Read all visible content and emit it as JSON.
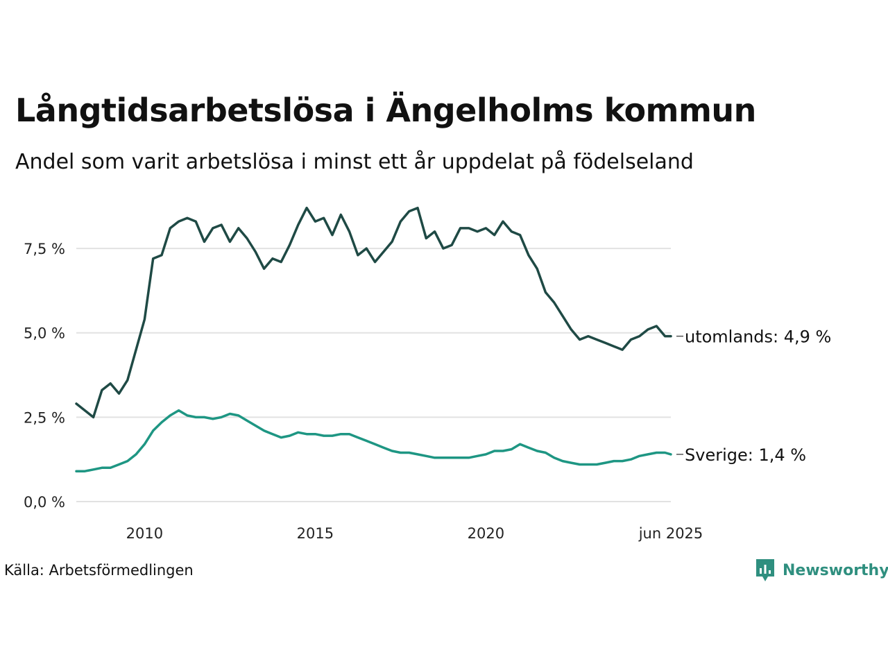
{
  "header": {
    "title": "Långtidsarbetslösa i Ängelholms kommun",
    "subtitle": "Andel som varit arbetslösa i minst ett år uppdelat på födelseland"
  },
  "footer": {
    "source": "Källa: Arbetsförmedlingen",
    "logo_text": "Newsworthy"
  },
  "chart_data": {
    "type": "line",
    "title": "Långtidsarbetslösa i Ängelholms kommun",
    "subtitle": "Andel som varit arbetslösa i minst ett år uppdelat på födelseland",
    "xlim": [
      2008.0,
      2025.42
    ],
    "ylim": [
      0,
      8.9
    ],
    "x_ticks": [
      {
        "value": 2010,
        "label": "2010"
      },
      {
        "value": 2015,
        "label": "2015"
      },
      {
        "value": 2020,
        "label": "2020"
      },
      {
        "value": 2025.42,
        "label": "jun 2025"
      }
    ],
    "y_ticks": [
      {
        "value": 0,
        "label": "0,0 %"
      },
      {
        "value": 2.5,
        "label": "2,5 %"
      },
      {
        "value": 5.0,
        "label": "5,0 %"
      },
      {
        "value": 7.5,
        "label": "7,5 %"
      }
    ],
    "grid": true,
    "series": [
      {
        "name": "utomlands",
        "end_label": "utomlands: 4,9 %",
        "color": "#1f4a45",
        "x": [
          2008.0,
          2008.25,
          2008.5,
          2008.75,
          2009.0,
          2009.25,
          2009.5,
          2009.75,
          2010.0,
          2010.25,
          2010.5,
          2010.75,
          2011.0,
          2011.25,
          2011.5,
          2011.75,
          2012.0,
          2012.25,
          2012.5,
          2012.75,
          2013.0,
          2013.25,
          2013.5,
          2013.75,
          2014.0,
          2014.25,
          2014.5,
          2014.75,
          2015.0,
          2015.25,
          2015.5,
          2015.75,
          2016.0,
          2016.25,
          2016.5,
          2016.75,
          2017.0,
          2017.25,
          2017.5,
          2017.75,
          2018.0,
          2018.25,
          2018.5,
          2018.75,
          2019.0,
          2019.25,
          2019.5,
          2019.75,
          2020.0,
          2020.25,
          2020.5,
          2020.75,
          2021.0,
          2021.25,
          2021.5,
          2021.75,
          2022.0,
          2022.25,
          2022.5,
          2022.75,
          2023.0,
          2023.25,
          2023.5,
          2023.75,
          2024.0,
          2024.25,
          2024.5,
          2024.75,
          2025.0,
          2025.25,
          2025.42
        ],
        "values": [
          2.9,
          2.7,
          2.5,
          3.3,
          3.5,
          3.2,
          3.6,
          4.5,
          5.4,
          7.2,
          7.3,
          8.1,
          8.3,
          8.4,
          8.3,
          7.7,
          8.1,
          8.2,
          7.7,
          8.1,
          7.8,
          7.4,
          6.9,
          7.2,
          7.1,
          7.6,
          8.2,
          8.7,
          8.3,
          8.4,
          7.9,
          8.5,
          8.0,
          7.3,
          7.5,
          7.1,
          7.4,
          7.7,
          8.3,
          8.6,
          8.7,
          7.8,
          8.0,
          7.5,
          7.6,
          8.1,
          8.1,
          8.0,
          8.1,
          7.9,
          8.3,
          8.0,
          7.9,
          7.3,
          6.9,
          6.2,
          5.9,
          5.5,
          5.1,
          4.8,
          4.9,
          4.8,
          4.7,
          4.6,
          4.5,
          4.8,
          4.9,
          5.1,
          5.2,
          4.9,
          4.9
        ]
      },
      {
        "name": "Sverige",
        "end_label": "Sverige: 1,4 %",
        "color": "#1e9683",
        "x": [
          2008.0,
          2008.25,
          2008.5,
          2008.75,
          2009.0,
          2009.25,
          2009.5,
          2009.75,
          2010.0,
          2010.25,
          2010.5,
          2010.75,
          2011.0,
          2011.25,
          2011.5,
          2011.75,
          2012.0,
          2012.25,
          2012.5,
          2012.75,
          2013.0,
          2013.25,
          2013.5,
          2013.75,
          2014.0,
          2014.25,
          2014.5,
          2014.75,
          2015.0,
          2015.25,
          2015.5,
          2015.75,
          2016.0,
          2016.25,
          2016.5,
          2016.75,
          2017.0,
          2017.25,
          2017.5,
          2017.75,
          2018.0,
          2018.25,
          2018.5,
          2018.75,
          2019.0,
          2019.25,
          2019.5,
          2019.75,
          2020.0,
          2020.25,
          2020.5,
          2020.75,
          2021.0,
          2021.25,
          2021.5,
          2021.75,
          2022.0,
          2022.25,
          2022.5,
          2022.75,
          2023.0,
          2023.25,
          2023.5,
          2023.75,
          2024.0,
          2024.25,
          2024.5,
          2024.75,
          2025.0,
          2025.25,
          2025.42
        ],
        "values": [
          0.9,
          0.9,
          0.95,
          1.0,
          1.0,
          1.1,
          1.2,
          1.4,
          1.7,
          2.1,
          2.35,
          2.55,
          2.7,
          2.55,
          2.5,
          2.5,
          2.45,
          2.5,
          2.6,
          2.55,
          2.4,
          2.25,
          2.1,
          2.0,
          1.9,
          1.95,
          2.05,
          2.0,
          2.0,
          1.95,
          1.95,
          2.0,
          2.0,
          1.9,
          1.8,
          1.7,
          1.6,
          1.5,
          1.45,
          1.45,
          1.4,
          1.35,
          1.3,
          1.3,
          1.3,
          1.3,
          1.3,
          1.35,
          1.4,
          1.5,
          1.5,
          1.55,
          1.7,
          1.6,
          1.5,
          1.45,
          1.3,
          1.2,
          1.15,
          1.1,
          1.1,
          1.1,
          1.15,
          1.2,
          1.2,
          1.25,
          1.35,
          1.4,
          1.45,
          1.45,
          1.4
        ]
      }
    ]
  }
}
